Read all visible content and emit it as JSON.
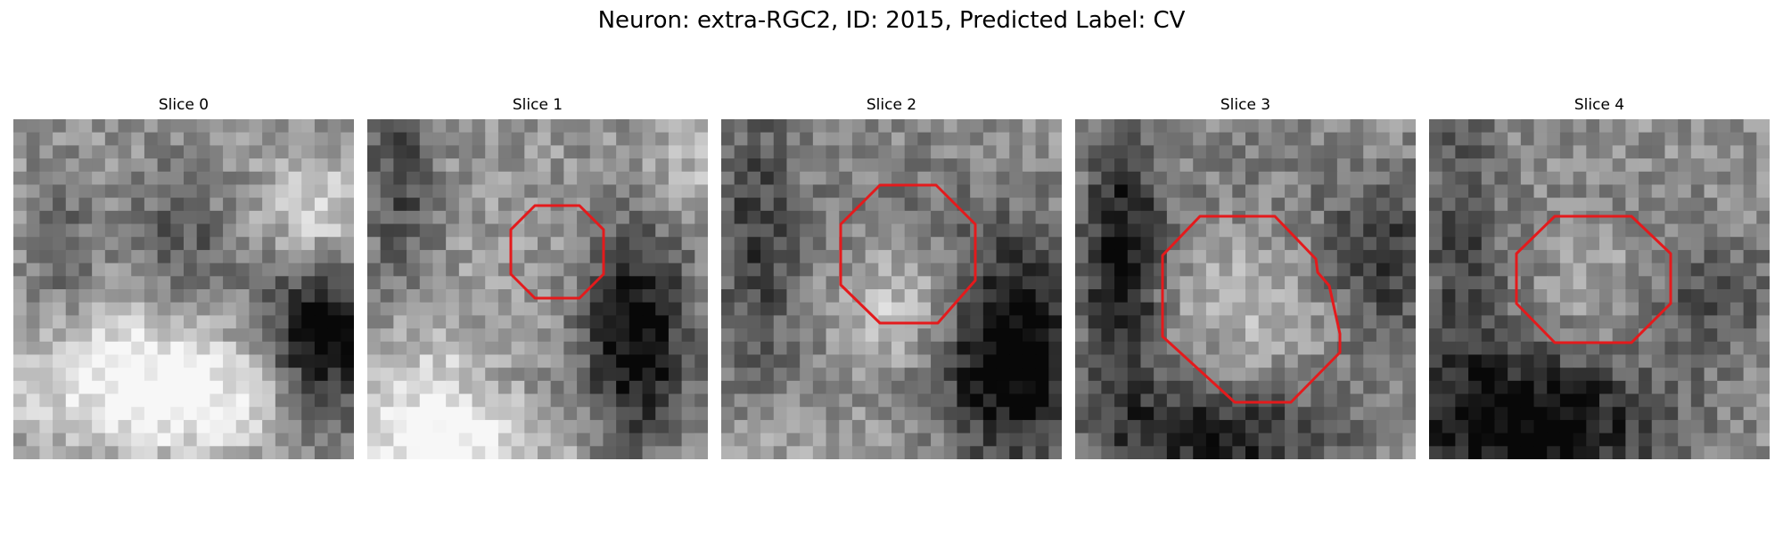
{
  "figure": {
    "title": "Neuron: extra-RGC2, ID: 2015, Predicted Label: CV"
  },
  "overlay_color": "#e41a1c",
  "colormap": "grayscale",
  "panels": [
    {
      "title": "Slice 0",
      "has_contour": false,
      "seed": 11
    },
    {
      "title": "Slice 1",
      "has_contour": true,
      "seed": 23
    },
    {
      "title": "Slice 2",
      "has_contour": true,
      "seed": 37
    },
    {
      "title": "Slice 3",
      "has_contour": true,
      "seed": 51
    },
    {
      "title": "Slice 4",
      "has_contour": true,
      "seed": 67
    }
  ]
}
